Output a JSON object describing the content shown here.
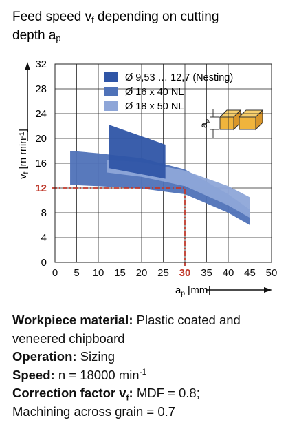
{
  "chart_data": {
    "type": "band",
    "title": [
      [
        {
          "text": "Feed speed v"
        },
        {
          "text": "f",
          "style": "sub"
        },
        {
          "text": " depending on cutting"
        }
      ],
      [
        {
          "text": "depth a"
        },
        {
          "text": "p",
          "style": "sub"
        }
      ]
    ],
    "y_label": [
      {
        "text": "v"
      },
      {
        "text": "f",
        "style": "sub"
      },
      {
        "text": " [m min"
      },
      {
        "text": "-1",
        "style": "sup"
      },
      {
        "text": "]"
      }
    ],
    "x_label": [
      {
        "text": "a"
      },
      {
        "text": "p",
        "style": "sub"
      },
      {
        "text": " [mm]"
      }
    ],
    "xlim": [
      0,
      50
    ],
    "xticks": [
      0,
      5,
      10,
      15,
      20,
      25,
      30,
      35,
      40,
      45,
      50
    ],
    "ylim": [
      0,
      32
    ],
    "yticks": [
      0,
      4,
      8,
      12,
      16,
      20,
      24,
      28,
      32
    ],
    "grid": true,
    "series": [
      {
        "name": "Ø 16 x 40 NL",
        "color": "#4f72b8",
        "x": [
          3.5,
          10,
          20,
          30,
          40,
          45
        ],
        "upper": [
          18,
          17.6,
          16.8,
          15,
          11,
          8.5
        ],
        "lower": [
          12.5,
          12.3,
          11.9,
          11,
          8,
          6
        ]
      },
      {
        "name": "Ø 18 x 50 NL",
        "color": "#8ea6d8",
        "x": [
          12,
          20,
          30,
          40,
          45
        ],
        "upper": [
          16.5,
          16.2,
          14.8,
          12.3,
          10.5
        ],
        "lower": [
          14.5,
          13.8,
          12.3,
          9.2,
          7.2
        ]
      },
      {
        "name": "Ø 9,53 … 12,7 (Nesting)",
        "color": "#2f55a6",
        "x": [
          12.5,
          25.5
        ],
        "upper": [
          22.2,
          19
        ],
        "lower": [
          15.2,
          13.5
        ]
      }
    ],
    "legend_order": [
      2,
      0,
      1
    ],
    "highlight": {
      "x": 30,
      "y": 12,
      "color": "#c0392b"
    },
    "inset_label": [
      {
        "text": "a"
      },
      {
        "text": "p",
        "style": "sub"
      }
    ]
  },
  "notes": [
    [
      {
        "text": "Workpiece material:",
        "style": "bold"
      },
      {
        "text": " Plastic coated and"
      }
    ],
    [
      {
        "text": "veneered chipboard"
      }
    ],
    [
      {
        "text": "Operation:",
        "style": "bold"
      },
      {
        "text": " Sizing"
      }
    ],
    [
      {
        "text": "Speed:",
        "style": "bold"
      },
      {
        "text": " n = 18000 min"
      },
      {
        "text": "-1",
        "style": "sup"
      }
    ],
    [
      {
        "text": "Correction factor v",
        "style": "bold"
      },
      {
        "text": "f",
        "style": "boldsub"
      },
      {
        "text": ":",
        "style": "bold"
      },
      {
        "text": " MDF = 0.8;"
      }
    ],
    [
      {
        "text": "Machining across grain = 0.7"
      }
    ]
  ]
}
